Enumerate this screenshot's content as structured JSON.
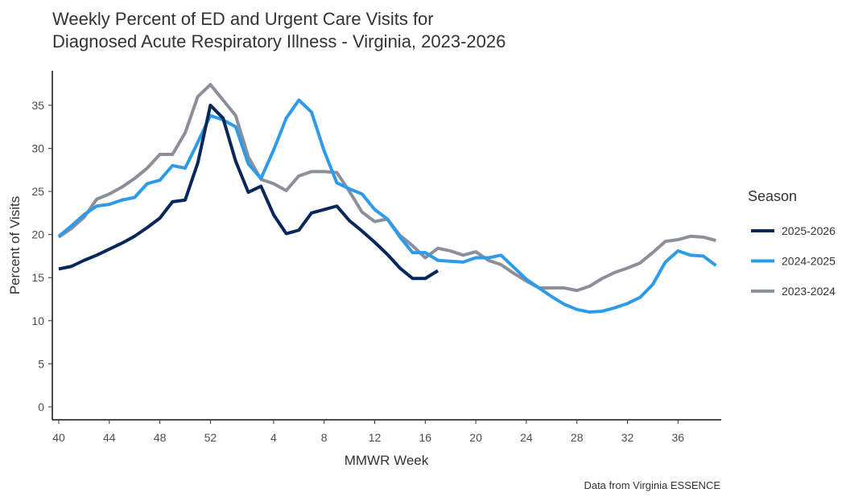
{
  "chart_data": {
    "type": "line",
    "title": [
      "Weekly Percent of ED and Urgent Care Visits for",
      "Diagnosed Acute Respiratory Illness - Virginia, 2023-2026"
    ],
    "x_label": "MMWR Week",
    "y_label": "Percent of Visits",
    "legend_title": "Season",
    "caption": "Data from Virginia ESSENCE",
    "categories": [
      "40",
      null,
      null,
      null,
      "44",
      null,
      null,
      null,
      "48",
      null,
      null,
      null,
      "52",
      null,
      null,
      null,
      null,
      "4",
      null,
      null,
      null,
      "8",
      null,
      null,
      null,
      "12",
      null,
      null,
      null,
      "16",
      null,
      null,
      null,
      "20",
      null,
      null,
      null,
      "24",
      null,
      null,
      null,
      "28",
      null,
      null,
      null,
      "32",
      null,
      null,
      null,
      "36",
      null,
      null,
      null
    ],
    "ylim": [
      -1.5,
      39
    ],
    "yticks": [
      0,
      5,
      10,
      15,
      20,
      25,
      30,
      35
    ],
    "series": [
      {
        "name": "2025-2026",
        "color": "#06275a",
        "values": [
          16.0,
          16.3,
          17.0,
          17.6,
          18.3,
          19.0,
          19.8,
          20.8,
          21.9,
          23.8,
          24.0,
          28.3,
          35.0,
          33.5,
          28.5,
          24.9,
          25.6,
          22.3,
          20.1,
          20.5,
          22.5,
          22.9,
          23.3,
          21.6,
          20.4,
          19.1,
          17.7,
          16.1,
          14.9,
          14.9,
          15.8,
          null,
          null,
          null,
          null,
          null,
          null,
          null,
          null,
          null,
          null,
          null,
          null,
          null,
          null,
          null,
          null,
          null,
          null,
          null,
          null,
          null,
          null
        ]
      },
      {
        "name": "2024-2025",
        "color": "#2e9bea",
        "values": [
          19.8,
          21.0,
          22.3,
          23.3,
          23.5,
          24.0,
          24.3,
          25.9,
          26.3,
          28.0,
          27.7,
          30.7,
          33.8,
          33.3,
          32.5,
          28.2,
          26.5,
          29.8,
          33.5,
          35.6,
          34.2,
          29.7,
          26.0,
          25.3,
          24.7,
          22.9,
          21.8,
          19.7,
          17.9,
          17.9,
          17.0,
          16.9,
          16.8,
          17.3,
          17.3,
          17.6,
          16.2,
          14.8,
          13.8,
          12.8,
          11.9,
          11.3,
          11.0,
          11.1,
          11.5,
          12.0,
          12.7,
          14.2,
          16.8,
          18.1,
          17.6,
          17.5,
          16.4
        ]
      },
      {
        "name": "2023-2024",
        "color": "#8c8f99",
        "values": [
          19.7,
          20.7,
          22.0,
          24.1,
          24.7,
          25.5,
          26.5,
          27.7,
          29.3,
          29.3,
          31.8,
          36.0,
          37.4,
          35.6,
          33.8,
          29.0,
          26.4,
          25.9,
          25.1,
          26.8,
          27.3,
          27.3,
          27.2,
          25.0,
          22.6,
          21.5,
          21.8,
          19.9,
          18.7,
          17.3,
          18.4,
          18.1,
          17.6,
          18.0,
          17.0,
          16.5,
          15.5,
          14.6,
          13.8,
          13.8,
          13.8,
          13.5,
          14.0,
          14.9,
          15.6,
          16.1,
          16.7,
          17.9,
          19.2,
          19.4,
          19.8,
          19.7,
          19.3
        ]
      }
    ]
  }
}
